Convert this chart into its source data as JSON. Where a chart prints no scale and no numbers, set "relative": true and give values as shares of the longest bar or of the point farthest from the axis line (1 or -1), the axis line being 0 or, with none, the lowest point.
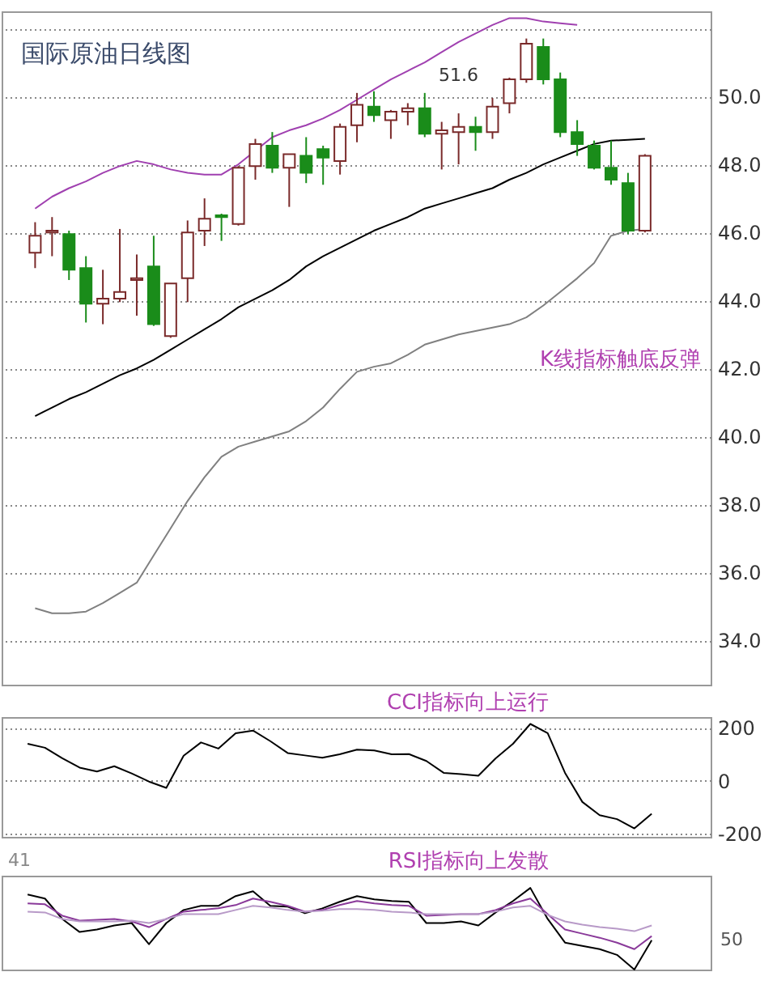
{
  "chart_data": [
    {
      "type": "candlestick",
      "title": "国际原油日线图",
      "categories": [
        null,
        null,
        null,
        null,
        null,
        null,
        null,
        null,
        null,
        null,
        null,
        null,
        null,
        null,
        null,
        null,
        null,
        null,
        null,
        null,
        null,
        null,
        null,
        null,
        null,
        null,
        null,
        null,
        null,
        null,
        null,
        null,
        null,
        null,
        null,
        null,
        null
      ],
      "ohlc": [
        [
          45.4,
          46.3,
          44.95,
          45.9
        ],
        [
          46.0,
          46.45,
          45.3,
          46.05
        ],
        [
          45.95,
          46.05,
          44.6,
          44.9
        ],
        [
          44.95,
          45.3,
          43.35,
          43.9
        ],
        [
          43.9,
          44.9,
          43.3,
          44.05
        ],
        [
          44.05,
          46.1,
          43.95,
          44.25
        ],
        [
          44.6,
          45.35,
          43.55,
          44.65
        ],
        [
          45.0,
          45.9,
          43.25,
          43.3
        ],
        [
          42.95,
          44.5,
          42.9,
          44.5
        ],
        [
          44.65,
          46.35,
          43.95,
          46.0
        ],
        [
          46.05,
          47.0,
          45.6,
          46.4
        ],
        [
          46.5,
          46.55,
          45.75,
          46.45
        ],
        [
          46.25,
          47.95,
          46.2,
          47.9
        ],
        [
          47.95,
          48.75,
          47.55,
          48.6
        ],
        [
          48.55,
          48.95,
          47.75,
          47.9
        ],
        [
          47.9,
          48.3,
          46.75,
          48.3
        ],
        [
          48.25,
          48.8,
          47.45,
          47.75
        ],
        [
          48.45,
          48.55,
          47.4,
          48.2
        ],
        [
          48.1,
          49.2,
          47.7,
          49.1
        ],
        [
          49.15,
          50.1,
          48.65,
          49.75
        ],
        [
          49.7,
          50.15,
          49.25,
          49.45
        ],
        [
          49.3,
          49.6,
          48.75,
          49.55
        ],
        [
          49.55,
          49.8,
          49.15,
          49.65
        ],
        [
          49.65,
          50.1,
          48.8,
          48.9
        ],
        [
          48.9,
          49.25,
          47.85,
          49.0
        ],
        [
          48.95,
          49.5,
          48.0,
          49.1
        ],
        [
          49.1,
          49.4,
          48.4,
          48.95
        ],
        [
          48.95,
          49.95,
          48.75,
          49.7
        ],
        [
          49.8,
          50.55,
          49.5,
          50.5
        ],
        [
          50.5,
          51.7,
          50.4,
          51.55
        ],
        [
          51.45,
          51.7,
          50.35,
          50.5
        ],
        [
          50.5,
          50.7,
          48.8,
          48.95
        ],
        [
          48.95,
          49.3,
          48.25,
          48.6
        ],
        [
          48.55,
          48.7,
          47.85,
          47.9
        ],
        [
          47.9,
          48.7,
          47.4,
          47.55
        ],
        [
          47.45,
          47.75,
          45.95,
          46.05
        ],
        [
          46.05,
          48.3,
          46.0,
          48.25
        ]
      ],
      "series": [
        {
          "type": "line",
          "color": "#a040b0",
          "values": [
            46.7,
            47.05,
            47.3,
            47.5,
            47.75,
            47.95,
            48.1,
            48.0,
            47.85,
            47.75,
            47.7,
            47.7,
            48.0,
            48.4,
            48.8,
            49.0,
            49.15,
            49.35,
            49.6,
            49.9,
            50.2,
            50.5,
            50.75,
            51.0,
            51.3,
            51.6,
            51.85,
            52.1,
            52.3,
            52.3,
            52.2,
            52.15,
            52.1,
            null,
            null,
            null,
            null
          ]
        },
        {
          "type": "line",
          "color": "#000000",
          "values": [
            40.6,
            40.85,
            41.1,
            41.3,
            41.55,
            41.8,
            42.0,
            42.25,
            42.55,
            42.85,
            43.15,
            43.45,
            43.8,
            44.05,
            44.3,
            44.6,
            45.0,
            45.3,
            45.55,
            45.8,
            46.05,
            46.25,
            46.45,
            46.7,
            46.85,
            47.0,
            47.15,
            47.3,
            47.55,
            47.75,
            48.0,
            48.2,
            48.4,
            48.6,
            48.7,
            48.72,
            48.75
          ]
        },
        {
          "type": "line",
          "color": "#808080",
          "values": [
            34.95,
            34.8,
            34.8,
            34.85,
            35.1,
            35.4,
            35.7,
            36.5,
            37.3,
            38.1,
            38.8,
            39.4,
            39.7,
            39.85,
            40.0,
            40.15,
            40.45,
            40.85,
            41.4,
            41.9,
            42.05,
            42.15,
            42.4,
            42.7,
            42.85,
            43.0,
            43.1,
            43.2,
            43.3,
            43.5,
            43.85,
            44.25,
            44.65,
            45.1,
            45.9,
            46.05,
            46.1
          ]
        }
      ],
      "ylim": [
        32.7,
        52.5
      ],
      "yticks": [
        {
          "value": 34,
          "label": "34.0"
        },
        {
          "value": 36,
          "label": "36.0"
        },
        {
          "value": 38,
          "label": "38.0"
        },
        {
          "value": 40,
          "label": "40.0"
        },
        {
          "value": 42,
          "label": "42.0"
        },
        {
          "value": 44,
          "label": "44.0"
        },
        {
          "value": 46,
          "label": "46.0"
        },
        {
          "value": 48,
          "label": "48.0"
        },
        {
          "value": 50,
          "label": "50.0"
        },
        {
          "value": 52,
          "label": null
        }
      ],
      "grid": "y",
      "annotations": [
        "K线指标触底反弹",
        "51.6"
      ]
    },
    {
      "type": "line",
      "categories": [
        null,
        null,
        null,
        null,
        null,
        null,
        null,
        null,
        null,
        null,
        null,
        null,
        null,
        null,
        null,
        null,
        null,
        null,
        null,
        null,
        null,
        null,
        null,
        null,
        null,
        null,
        null,
        null,
        null,
        null,
        null,
        null,
        null,
        null,
        null,
        null,
        null
      ],
      "series": [
        {
          "color": "#000000",
          "values": [
            140,
            125,
            85,
            50,
            35,
            55,
            28,
            -3,
            -27,
            95,
            145,
            122,
            180,
            190,
            150,
            105,
            96,
            87,
            100,
            118,
            115,
            100,
            101,
            75,
            30,
            25,
            19,
            85,
            140,
            215,
            180,
            30,
            -80,
            -130,
            -145,
            -180,
            -125
          ]
        }
      ],
      "ylim": [
        -212,
        241
      ],
      "yticks": [
        -200,
        0,
        200
      ],
      "grid": "y",
      "annotations": [
        "CCI指标向上运行"
      ]
    },
    {
      "type": "line",
      "relative": true,
      "categories": [
        null,
        null,
        null,
        null,
        null,
        null,
        null,
        null,
        null,
        null,
        null,
        null,
        null,
        null,
        null,
        null,
        null,
        null,
        null,
        null,
        null,
        null,
        null,
        null,
        null,
        null,
        null,
        null,
        null,
        null,
        null,
        null,
        null,
        null,
        null,
        null,
        null
      ],
      "series": [
        {
          "color": "#000000",
          "values": [
            0.92,
            0.87,
            0.62,
            0.46,
            0.49,
            0.54,
            0.57,
            0.31,
            0.57,
            0.73,
            0.78,
            0.78,
            0.9,
            0.96,
            0.78,
            0.77,
            0.69,
            0.75,
            0.83,
            0.9,
            0.86,
            0.84,
            0.83,
            0.57,
            0.57,
            0.59,
            0.54,
            0.7,
            0.84,
            1,
            0.62,
            0.33,
            0.29,
            0.25,
            0.18,
            0,
            0.36
          ]
        },
        {
          "color": "#8a3a9a",
          "values": [
            0.81,
            0.8,
            0.66,
            0.6,
            0.61,
            0.62,
            0.59,
            0.52,
            0.62,
            0.71,
            0.73,
            0.75,
            0.79,
            0.87,
            0.83,
            0.78,
            0.71,
            0.73,
            0.79,
            0.84,
            0.81,
            0.79,
            0.78,
            0.66,
            0.67,
            0.68,
            0.68,
            0.73,
            0.81,
            0.87,
            0.68,
            0.49,
            0.44,
            0.39,
            0.33,
            0.25,
            0.41
          ]
        },
        {
          "color": "#b89ac8",
          "values": [
            0.71,
            0.7,
            0.62,
            0.59,
            0.59,
            0.59,
            0.6,
            0.57,
            0.62,
            0.68,
            0.68,
            0.68,
            0.73,
            0.78,
            0.76,
            0.73,
            0.71,
            0.72,
            0.74,
            0.74,
            0.73,
            0.71,
            0.7,
            0.68,
            0.68,
            0.68,
            0.68,
            0.71,
            0.76,
            0.78,
            0.67,
            0.59,
            0.55,
            0.52,
            0.5,
            0.47,
            0.54
          ]
        }
      ],
      "annotations": [
        "RSI指标向上发散",
        "41",
        "50"
      ]
    }
  ]
}
